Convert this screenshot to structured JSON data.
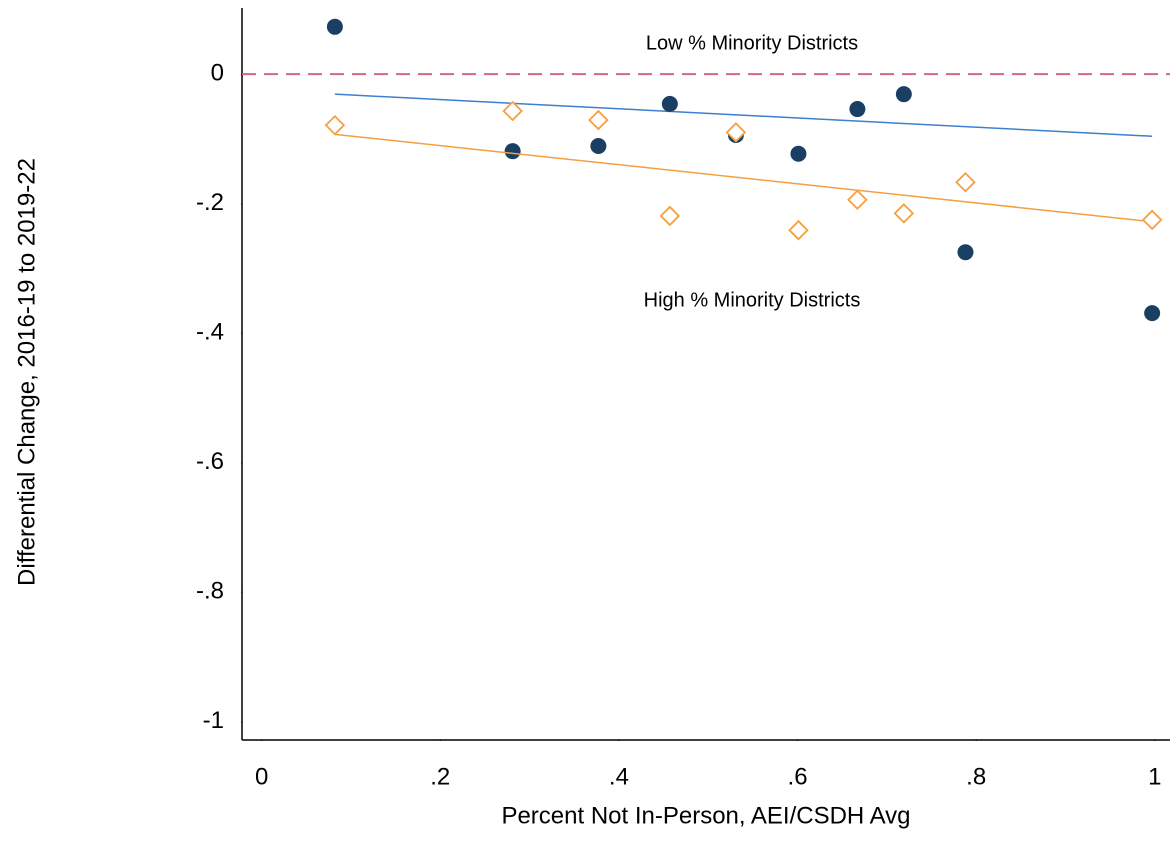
{
  "chart_data": {
    "type": "scatter",
    "xlabel": "Percent Not In-Person, AEI/CSDH Avg",
    "ylabel": "Differential Change, 2016-19 to 2019-22",
    "xlim": [
      -0.022,
      1.017
    ],
    "ylim": [
      -1.028,
      0.102
    ],
    "xticks": [
      0,
      {
        "value": 0.2,
        "label": ".2"
      },
      {
        "value": 0.4,
        "label": ".4"
      },
      {
        "value": 0.6,
        "label": ".6"
      },
      {
        "value": 0.8,
        "label": ".8"
      },
      1
    ],
    "yticks": [
      0,
      {
        "value": -0.2,
        "label": "-.2"
      },
      {
        "value": -0.4,
        "label": "-.4"
      },
      {
        "value": -0.6,
        "label": "-.6"
      },
      {
        "value": -0.8,
        "label": "-.8"
      },
      -1
    ],
    "reference_line": {
      "y": 0,
      "color": "#d06a7e",
      "dashed": true
    },
    "series": [
      {
        "name": "Low % Minority Districts",
        "color": "#1b3f63",
        "marker": "circle",
        "x": [
          0.082,
          0.281,
          0.377,
          0.457,
          0.531,
          0.601,
          0.667,
          0.719,
          0.788,
          0.997
        ],
        "values": [
          0.073,
          -0.119,
          -0.111,
          -0.046,
          -0.094,
          -0.123,
          -0.054,
          -0.031,
          -0.275,
          -0.369
        ],
        "fit": {
          "x": [
            0.082,
            0.997
          ],
          "values": [
            -0.031,
            -0.096
          ],
          "color": "#3f7fcf"
        }
      },
      {
        "name": "High % Minority Districts",
        "color": "#f5a040",
        "marker": "diamond",
        "x": [
          0.082,
          0.281,
          0.377,
          0.457,
          0.531,
          0.601,
          0.667,
          0.719,
          0.788,
          0.997
        ],
        "values": [
          -0.079,
          -0.057,
          -0.071,
          -0.219,
          -0.09,
          -0.241,
          -0.194,
          -0.215,
          -0.167,
          -0.225
        ],
        "fit": {
          "x": [
            0.082,
            0.997
          ],
          "values": [
            -0.093,
            -0.228
          ],
          "color": "#f5a040"
        }
      }
    ]
  }
}
